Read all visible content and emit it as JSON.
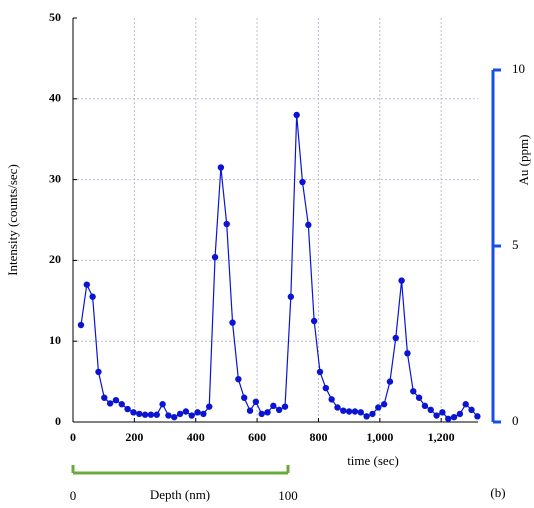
{
  "chart_data": {
    "type": "line",
    "x_label": "time (sec)",
    "y_label": "Intensity (counts/sec)",
    "y2_label": "Au (ppm)",
    "annotation": "(b)",
    "x": [
      26,
      45,
      64,
      83,
      102,
      121,
      140,
      159,
      178,
      197,
      216,
      235,
      254,
      273,
      292,
      311,
      330,
      349,
      368,
      387,
      406,
      425,
      444,
      463,
      482,
      501,
      520,
      539,
      558,
      577,
      596,
      615,
      634,
      653,
      672,
      691,
      710,
      729,
      748,
      767,
      786,
      805,
      824,
      843,
      862,
      881,
      900,
      919,
      938,
      957,
      976,
      995,
      1014,
      1033,
      1052,
      1071,
      1090,
      1109,
      1128,
      1147,
      1166,
      1185,
      1204,
      1223,
      1242,
      1261,
      1280,
      1299,
      1318
    ],
    "series": [
      {
        "color": "#0a14d2",
        "values": [
          12.0,
          17.0,
          15.5,
          6.2,
          3.0,
          2.3,
          2.7,
          2.2,
          1.6,
          1.2,
          1.0,
          0.9,
          0.9,
          0.9,
          2.2,
          0.8,
          0.6,
          1.0,
          1.3,
          0.8,
          1.2,
          1.0,
          1.9,
          20.4,
          31.5,
          24.5,
          12.3,
          5.3,
          3.0,
          1.4,
          2.5,
          1.0,
          1.2,
          2.0,
          1.5,
          1.9,
          15.5,
          38.0,
          29.7,
          24.4,
          12.5,
          6.2,
          4.2,
          2.8,
          1.8,
          1.4,
          1.3,
          1.3,
          1.2,
          0.7,
          1.0,
          1.8,
          2.2,
          5.0,
          10.4,
          17.5,
          8.5,
          3.8,
          3.0,
          2.0,
          1.5,
          0.8,
          1.2,
          0.4,
          0.6,
          1.0,
          2.2,
          1.5,
          0.7
        ]
      }
    ],
    "xlim": [
      0,
      1320
    ],
    "xticks": [
      0,
      200,
      400,
      600,
      800,
      {
        "value": 1000,
        "label": "1,000"
      },
      {
        "value": 1200,
        "label": "1,200"
      }
    ],
    "ylim": [
      0,
      50
    ],
    "yticks": [
      0,
      10,
      20,
      30,
      40,
      50
    ],
    "y2lim": [
      0,
      10
    ],
    "y2ticks": [
      0,
      5,
      10
    ],
    "y2_color": "#1450e6",
    "grid": true,
    "depth_axis": {
      "label": "Depth (nm)",
      "lim": [
        0,
        100
      ],
      "ticks": [
        0,
        100
      ],
      "color": "#6aaa3a"
    }
  }
}
